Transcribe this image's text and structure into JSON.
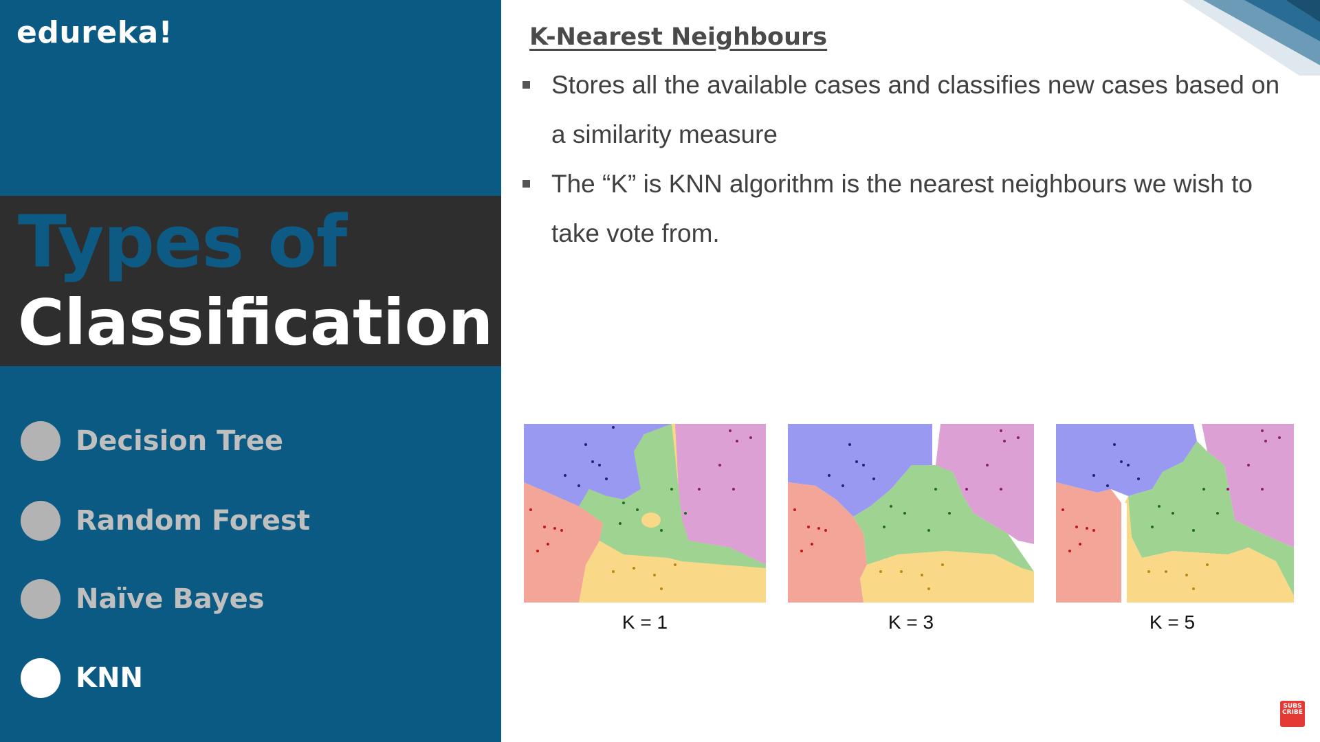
{
  "brand": {
    "name": "edureka!"
  },
  "sidebar": {
    "title_line1": "Types of",
    "title_line2": "Classification",
    "topics": [
      {
        "label": "Decision Tree",
        "active": false
      },
      {
        "label": "Random Forest",
        "active": false
      },
      {
        "label": "Naïve Bayes",
        "active": false
      },
      {
        "label": "KNN",
        "active": true
      }
    ]
  },
  "slide": {
    "heading": "K-Nearest Neighbours",
    "bullets": [
      "Stores all the available cases and classifies new cases based on a similarity measure",
      "The “K” is KNN algorithm is the nearest neighbours we wish to take vote from."
    ],
    "figures": [
      {
        "caption": "K = 1"
      },
      {
        "caption": "K = 3"
      },
      {
        "caption": "K = 5"
      }
    ]
  },
  "subscribe": {
    "label_line1": "SUBS",
    "label_line2": "CRIBE"
  },
  "colors": {
    "panel_blue": "#0b5a83",
    "band_dark": "#2e2e2e",
    "region_blue": "#9a99f2",
    "region_pink": "#dca0d4",
    "region_red": "#f3a698",
    "region_green": "#9fd391",
    "region_yellow": "#f9d888"
  }
}
